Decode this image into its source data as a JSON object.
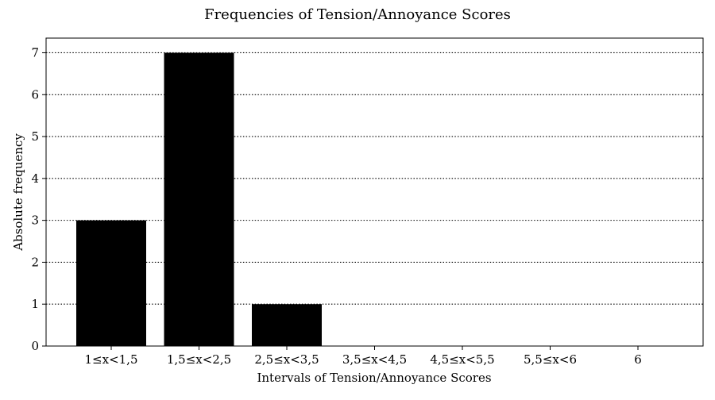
{
  "chart_data": {
    "type": "bar",
    "title": "Frequencies of Tension/Annoyance Scores",
    "xlabel": "Intervals of Tension/Annoyance Scores",
    "ylabel": "Absolute frequency",
    "categories": [
      "1≤x<1,5",
      "1,5≤x<2,5",
      "2,5≤x<3,5",
      "3,5≤x<4,5",
      "4,5≤x<5,5",
      "5,5≤x<6",
      "6"
    ],
    "values": [
      3,
      7,
      1,
      0,
      0,
      0,
      0
    ],
    "ylim": [
      0,
      7.35
    ],
    "yticks": [
      0,
      1,
      2,
      3,
      4,
      5,
      6,
      7
    ],
    "grid": "horizontal dotted",
    "bar_color": "#000000"
  }
}
